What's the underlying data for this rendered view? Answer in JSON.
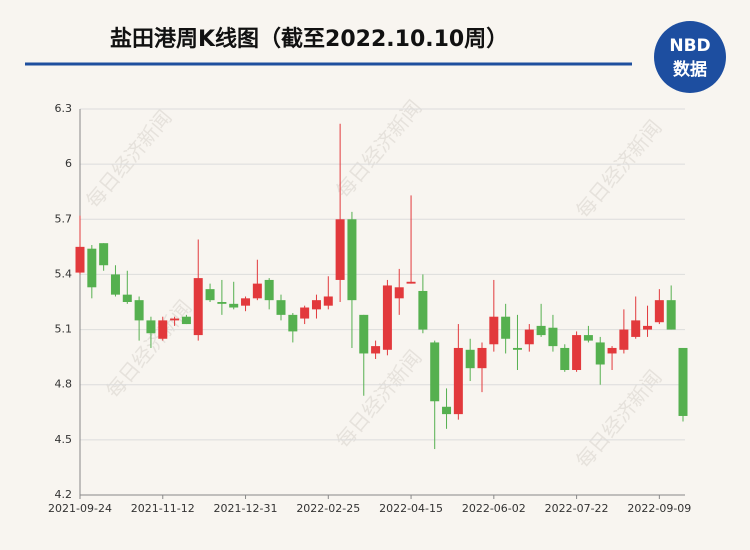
{
  "chart_data": {
    "type": "candlestick",
    "title": "盐田港周K线图（截至2022.10.10周）",
    "logo_top": "NBD",
    "logo_bottom": "数据",
    "watermark": "每日经济新闻",
    "categories": [
      "2021-09-24",
      null,
      null,
      null,
      null,
      null,
      null,
      "2021-11-12",
      null,
      null,
      null,
      null,
      null,
      null,
      "2021-12-31",
      null,
      null,
      null,
      null,
      null,
      null,
      "2022-02-25",
      null,
      null,
      null,
      null,
      null,
      null,
      "2022-04-15",
      null,
      null,
      null,
      null,
      null,
      null,
      "2022-06-02",
      null,
      null,
      null,
      null,
      null,
      null,
      "2022-07-22",
      null,
      null,
      null,
      null,
      null,
      null,
      "2022-09-09",
      null,
      null
    ],
    "open": [
      5.41,
      5.54,
      5.57,
      5.4,
      5.29,
      5.26,
      5.15,
      5.05,
      5.15,
      5.17,
      5.07,
      5.32,
      5.25,
      5.24,
      5.23,
      5.27,
      5.37,
      5.26,
      5.18,
      5.16,
      5.21,
      5.23,
      5.37,
      5.7,
      5.18,
      4.97,
      4.99,
      5.27,
      5.35,
      5.31,
      5.03,
      4.68,
      4.64,
      4.99,
      4.89,
      5.02,
      5.17,
      5.0,
      5.02,
      5.12,
      5.11,
      5.0,
      4.88,
      5.07,
      5.03,
      4.97,
      4.99,
      5.06,
      5.1,
      5.14,
      5.26,
      5.0
    ],
    "high": [
      5.72,
      5.56,
      5.57,
      5.45,
      5.42,
      5.28,
      5.17,
      5.17,
      5.17,
      5.18,
      5.59,
      5.35,
      5.37,
      5.36,
      5.28,
      5.48,
      5.38,
      5.29,
      5.19,
      5.23,
      5.29,
      5.39,
      6.22,
      5.74,
      5.18,
      5.04,
      5.37,
      5.43,
      5.83,
      5.4,
      5.04,
      4.78,
      5.13,
      5.05,
      5.03,
      5.37,
      5.24,
      5.18,
      5.13,
      5.24,
      5.18,
      5.02,
      5.09,
      5.12,
      5.06,
      5.01,
      5.21,
      5.28,
      5.23,
      5.32,
      5.34,
      5.0
    ],
    "low": [
      5.4,
      5.27,
      5.42,
      5.28,
      5.24,
      5.04,
      5.0,
      5.04,
      5.12,
      5.13,
      5.04,
      5.25,
      5.18,
      5.21,
      5.2,
      5.26,
      5.21,
      5.15,
      5.03,
      5.13,
      5.16,
      5.21,
      5.25,
      5.0,
      4.74,
      4.94,
      4.96,
      5.18,
      5.35,
      5.08,
      4.45,
      4.56,
      4.61,
      4.82,
      4.76,
      4.98,
      4.97,
      4.88,
      4.98,
      5.06,
      4.98,
      4.87,
      4.87,
      5.03,
      4.8,
      4.88,
      4.97,
      5.05,
      5.06,
      5.13,
      5.1,
      4.6
    ],
    "close": [
      5.55,
      5.33,
      5.45,
      5.29,
      5.25,
      5.15,
      5.08,
      5.15,
      5.16,
      5.13,
      5.38,
      5.26,
      5.24,
      5.22,
      5.27,
      5.35,
      5.26,
      5.18,
      5.09,
      5.22,
      5.26,
      5.28,
      5.7,
      5.26,
      4.97,
      5.01,
      5.34,
      5.33,
      5.36,
      5.1,
      4.71,
      4.64,
      5.0,
      4.89,
      5.0,
      5.17,
      5.05,
      4.99,
      5.1,
      5.07,
      5.01,
      4.88,
      5.07,
      5.04,
      4.91,
      5.0,
      5.1,
      5.15,
      5.12,
      5.26,
      5.1,
      4.63
    ],
    "up_color": "#e2393c",
    "down_color": "#55b04f",
    "ylim": [
      4.2,
      6.3
    ],
    "yticks": [
      4.2,
      4.5,
      4.8,
      5.1,
      5.4,
      5.7,
      6,
      6.3
    ],
    "grid": true
  }
}
